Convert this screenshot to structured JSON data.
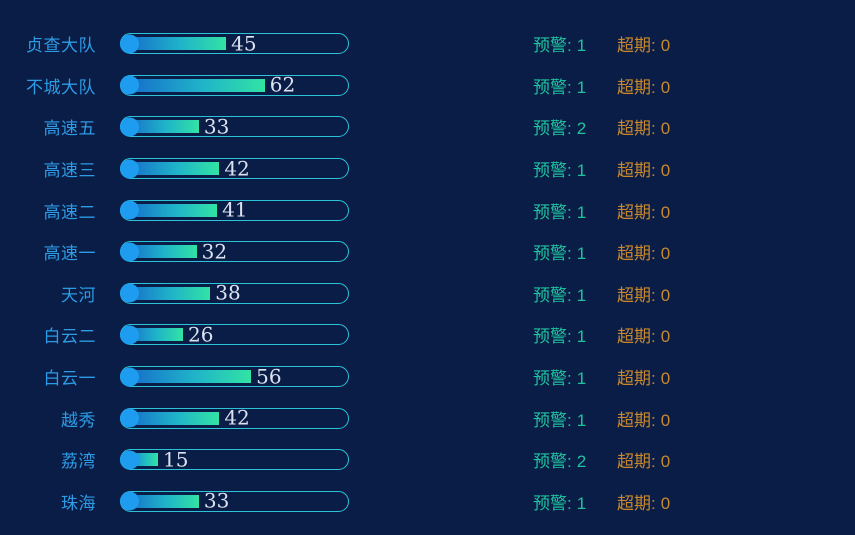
{
  "colors": {
    "background": "#0a1d46",
    "label_blue": "#2d9be5",
    "bar_border": "#2cc2d7",
    "bar_dot": "#1e9df0",
    "bar_gradient_start": "#1668ca",
    "bar_gradient_mid": "#1fb3c9",
    "bar_gradient_end": "#32e3a4",
    "value_text": "#dce2f0",
    "warning_text": "#1fc39f",
    "overdue_text": "#c9882c"
  },
  "chart_data": {
    "type": "bar",
    "orientation": "horizontal",
    "title": "",
    "xlabel": "",
    "ylabel": "",
    "xlim": [
      0,
      100
    ],
    "grid": false,
    "categories": [
      "贞查大队",
      "不城大队",
      "高速五",
      "高速三",
      "高速二",
      "高速一",
      "天河",
      "白云二",
      "白云一",
      "越秀",
      "荔湾",
      "珠海"
    ],
    "values": [
      45,
      62,
      33,
      42,
      41,
      32,
      38,
      26,
      56,
      42,
      15,
      33
    ],
    "series": [
      {
        "name": "预警",
        "values": [
          1,
          1,
          2,
          1,
          1,
          1,
          1,
          1,
          1,
          1,
          2,
          1
        ]
      },
      {
        "name": "超期",
        "values": [
          0,
          0,
          0,
          0,
          0,
          0,
          0,
          0,
          0,
          0,
          0,
          0
        ]
      }
    ]
  },
  "rows": [
    {
      "label": "贞查大队",
      "value": 45,
      "warn_label": "预警:",
      "warn_value": 1,
      "over_label": "超期:",
      "over_value": 0
    },
    {
      "label": "不城大队",
      "value": 62,
      "warn_label": "预警:",
      "warn_value": 1,
      "over_label": "超期:",
      "over_value": 0
    },
    {
      "label": "高速五",
      "value": 33,
      "warn_label": "预警:",
      "warn_value": 2,
      "over_label": "超期:",
      "over_value": 0
    },
    {
      "label": "高速三",
      "value": 42,
      "warn_label": "预警:",
      "warn_value": 1,
      "over_label": "超期:",
      "over_value": 0
    },
    {
      "label": "高速二",
      "value": 41,
      "warn_label": "预警:",
      "warn_value": 1,
      "over_label": "超期:",
      "over_value": 0
    },
    {
      "label": "高速一",
      "value": 32,
      "warn_label": "预警:",
      "warn_value": 1,
      "over_label": "超期:",
      "over_value": 0
    },
    {
      "label": "天河",
      "value": 38,
      "warn_label": "预警:",
      "warn_value": 1,
      "over_label": "超期:",
      "over_value": 0
    },
    {
      "label": "白云二",
      "value": 26,
      "warn_label": "预警:",
      "warn_value": 1,
      "over_label": "超期:",
      "over_value": 0
    },
    {
      "label": "白云一",
      "value": 56,
      "warn_label": "预警:",
      "warn_value": 1,
      "over_label": "超期:",
      "over_value": 0
    },
    {
      "label": "越秀",
      "value": 42,
      "warn_label": "预警:",
      "warn_value": 1,
      "over_label": "超期:",
      "over_value": 0
    },
    {
      "label": "荔湾",
      "value": 15,
      "warn_label": "预警:",
      "warn_value": 2,
      "over_label": "超期:",
      "over_value": 0
    },
    {
      "label": "珠海",
      "value": 33,
      "warn_label": "预警:",
      "warn_value": 1,
      "over_label": "超期:",
      "over_value": 0
    }
  ]
}
